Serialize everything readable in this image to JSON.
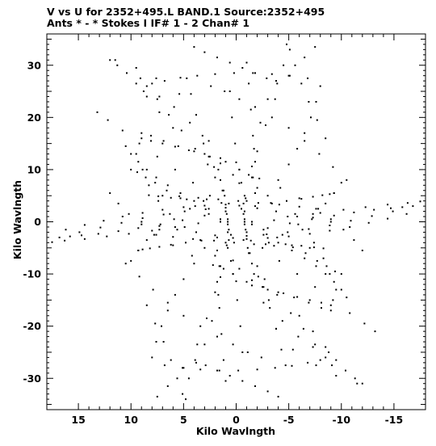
{
  "chart_data": {
    "type": "scatter",
    "title_line1": "V vs U for 2352+495.L BAND.1   Source:2352+495",
    "title_line2": "Ants * - *     Stokes I  IF# 1 - 2  Chan# 1",
    "xlabel": "Kilo Wavlngth",
    "ylabel": "Kilo Wavlngth",
    "xlim": [
      18.0,
      -18.0
    ],
    "ylim": [
      -36.0,
      36.0
    ],
    "x_ticks": [
      15,
      10,
      5,
      0,
      -5,
      -10,
      -15
    ],
    "x_tick_labels": [
      "15",
      "10",
      "5",
      "0",
      "-5",
      "-10",
      "-15"
    ],
    "y_ticks": [
      30,
      20,
      10,
      0,
      -10,
      -20,
      -30
    ],
    "y_tick_labels": [
      "30",
      "20",
      "10",
      "0",
      "-10",
      "-20",
      "-30"
    ],
    "grid": false,
    "legend": "none",
    "marker_color": "#000000",
    "uv_tracks": [
      {
        "u": [
          11.5,
          9.5,
          7.6,
          5.4,
          3.8,
          2.6,
          1.7,
          1.1,
          0.8,
          0.7
        ],
        "v": [
          31.0,
          29.5,
          27.5,
          24.5,
          20.5,
          15.5,
          10.0,
          5.0,
          0.5,
          -3.5
        ]
      },
      {
        "u": [
          -7.5,
          -6.5,
          -5.0,
          -3.7,
          -2.8,
          -2.0,
          -1.5,
          -1.0,
          -0.8,
          -0.7
        ],
        "v": [
          33.5,
          31.5,
          28.0,
          23.5,
          18.5,
          13.5,
          8.5,
          4.0,
          0.0,
          -3.5
        ]
      },
      {
        "u": [
          8.8,
          7.3,
          5.9,
          4.4,
          3.1,
          2.1,
          1.3,
          0.9,
          0.8
        ],
        "v": [
          25.0,
          24.0,
          22.0,
          19.0,
          15.0,
          10.5,
          6.0,
          1.5,
          -2.0
        ]
      },
      {
        "u": [
          -4.5,
          -3.8,
          -3.0,
          -2.3,
          -1.7,
          -1.2,
          -0.9,
          -0.8
        ],
        "v": [
          30.0,
          27.0,
          23.5,
          19.0,
          14.0,
          9.0,
          4.5,
          0.5
        ]
      },
      {
        "u": [
          9.5,
          8.9,
          8.3,
          7.4,
          6.3,
          4.9,
          3.4,
          1.8,
          0.5,
          -0.3
        ],
        "v": [
          13.0,
          10.0,
          7.0,
          4.0,
          1.5,
          -1.0,
          -3.5,
          -5.5,
          -7.5,
          -9.0
        ]
      },
      {
        "u": [
          0.7,
          1.5,
          2.6,
          3.9,
          5.3,
          6.6,
          7.7,
          8.6,
          9.4,
          10.0
        ],
        "v": [
          -1.5,
          0.0,
          1.5,
          3.0,
          4.5,
          6.0,
          7.5,
          8.5,
          9.5,
          10.0
        ]
      },
      {
        "u": [
          -0.5,
          -1.8,
          -3.3,
          -4.8,
          -6.2,
          -7.3,
          -8.2,
          -8.9,
          -9.3
        ],
        "v": [
          2.5,
          3.0,
          3.6,
          4.0,
          4.4,
          4.8,
          5.1,
          5.3,
          5.5
        ]
      },
      {
        "u": [
          16.2,
          14.4,
          12.6,
          10.8,
          8.9,
          7.0,
          5.0,
          3.0,
          1.0
        ],
        "v": [
          -1.5,
          -0.6,
          0.2,
          1.0,
          1.7,
          2.3,
          2.8,
          3.1,
          3.3
        ]
      },
      {
        "u": [
          16.8,
          14.9,
          12.9,
          10.9,
          8.9,
          6.9,
          4.9,
          2.9,
          1.0
        ],
        "v": [
          -3.0,
          -2.0,
          -1.1,
          -0.2,
          0.7,
          1.4,
          2.0,
          2.4,
          2.7
        ]
      },
      {
        "u": [
          -1.5,
          -3.6,
          -5.8,
          -8.0,
          -10.2,
          -12.3,
          -14.4,
          -16.3,
          -17.5
        ],
        "v": [
          -0.5,
          0.3,
          1.0,
          1.7,
          2.3,
          2.8,
          3.3,
          3.6,
          3.9
        ]
      },
      {
        "u": [
          -1.0,
          -3.0,
          -5.1,
          -7.2,
          -9.3,
          -11.2,
          -13.1,
          -14.7,
          -15.8
        ],
        "v": [
          -2.0,
          -1.2,
          -0.3,
          0.5,
          1.2,
          1.8,
          2.3,
          2.6,
          2.8
        ]
      },
      {
        "u": [
          9.0,
          7.3,
          5.6,
          3.8,
          2.0,
          0.3,
          -1.4,
          -3.1,
          -4.7,
          -6.2,
          -7.4,
          -8.3
        ],
        "v": [
          0.0,
          -0.8,
          -1.5,
          -2.0,
          -2.6,
          -3.1,
          -3.6,
          -4.0,
          -4.3,
          -4.6,
          -4.9,
          -5.1
        ]
      },
      {
        "u": [
          7.8,
          6.0,
          4.1,
          2.1,
          0.2,
          -1.7,
          -3.6,
          -5.4,
          -7.0
        ],
        "v": [
          -2.5,
          -2.9,
          -3.3,
          -3.6,
          -4.0,
          -4.3,
          -4.6,
          -4.9,
          -5.0
        ]
      },
      {
        "u": [
          10.5,
          9.2,
          7.9,
          6.5,
          5.0,
          3.4,
          1.8,
          0.3,
          -1.1,
          -2.4
        ],
        "v": [
          -8.0,
          -10.5,
          -13.0,
          -15.5,
          -18.0,
          -20.0,
          -22.0,
          -23.5,
          -25.0,
          -26.0
        ]
      },
      {
        "u": [
          8.5,
          7.7,
          6.9,
          6.2,
          5.6,
          5.1,
          4.8
        ],
        "v": [
          -16.0,
          -19.5,
          -23.0,
          -26.5,
          -30.0,
          -33.0,
          -34.0
        ]
      },
      {
        "u": [
          -6.0,
          -7.3,
          -8.5,
          -9.5,
          -10.4,
          -11.3,
          -12.0
        ],
        "v": [
          -18.0,
          -21.0,
          -24.0,
          -26.5,
          -28.5,
          -30.0,
          -31.0
        ]
      },
      {
        "u": [
          -2.5,
          -4.1,
          -5.8,
          -7.5,
          -9.2,
          -10.8,
          -12.2,
          -13.2
        ],
        "v": [
          -5.0,
          -7.5,
          -10.0,
          -12.5,
          -15.0,
          -17.5,
          -19.5,
          -21.0
        ]
      },
      {
        "u": [
          -1.5,
          -2.7,
          -3.9,
          -5.2,
          -6.4,
          -7.5,
          -8.5,
          -9.1
        ],
        "v": [
          -8.0,
          -11.0,
          -14.0,
          -17.5,
          -20.5,
          -23.5,
          -26.0,
          -27.5
        ]
      },
      {
        "u": [
          0.8,
          0.3,
          -0.1,
          -0.4,
          -0.6
        ],
        "v": [
          -5.0,
          -10.0,
          -15.0,
          -20.0,
          -25.0
        ]
      },
      {
        "u": [
          2.0,
          1.8,
          1.6,
          1.4,
          1.2,
          1.0
        ],
        "v": [
          -6.5,
          -11.5,
          -16.5,
          -21.5,
          -26.5,
          -30.5
        ]
      },
      {
        "u": [
          -2.0,
          -2.6,
          -3.2,
          -3.8,
          -4.3,
          -4.7
        ],
        "v": [
          -8.5,
          -12.5,
          -16.5,
          -20.5,
          -24.5,
          -27.5
        ]
      },
      {
        "u": [
          12.0,
          11.2,
          10.2,
          9.0,
          7.6,
          6.0,
          4.2,
          2.2,
          0.3,
          -1.5
        ],
        "v": [
          5.5,
          3.5,
          1.5,
          -0.5,
          -2.5,
          -4.5,
          -6.5,
          -8.3,
          -10.0,
          -11.2
        ]
      },
      {
        "u": [
          -10.0,
          -9.3,
          -8.5,
          -7.3,
          -5.9,
          -4.4,
          -2.8,
          -1.2,
          0.3,
          1.6
        ],
        "v": [
          7.5,
          5.5,
          3.5,
          1.5,
          -0.5,
          -2.5,
          -4.3,
          -6.0,
          -7.4,
          -8.5
        ]
      },
      {
        "u": [
          10.5,
          10.0,
          9.3,
          8.5,
          7.6,
          6.5,
          5.3,
          4.0,
          2.6
        ],
        "v": [
          14.5,
          13.0,
          11.5,
          10.0,
          8.5,
          7.0,
          5.5,
          4.0,
          2.5
        ]
      },
      {
        "u": [
          -8.0,
          -7.6,
          -7.1,
          -6.5,
          -5.8,
          -5.0,
          -4.0,
          -3.0
        ],
        "v": [
          26.0,
          23.0,
          20.0,
          17.0,
          14.0,
          11.0,
          8.0,
          5.0
        ]
      },
      {
        "u": [
          4.0,
          3.0,
          1.8,
          0.6,
          -0.6,
          -1.8,
          -2.9,
          -3.9
        ],
        "v": [
          33.5,
          32.5,
          31.5,
          30.5,
          29.5,
          28.5,
          27.5,
          26.5
        ]
      },
      {
        "u": [
          6.8,
          5.1,
          3.4,
          1.6,
          -0.2,
          -2.0,
          -3.7,
          -5.3,
          -6.8,
          -8.0
        ],
        "v": [
          -27.5,
          -28.0,
          -28.3,
          -28.5,
          -28.5,
          -28.3,
          -28.0,
          -27.6,
          -27.0,
          -26.5
        ]
      },
      {
        "u": [
          9.0,
          8.1,
          7.0,
          5.8,
          4.5,
          3.0,
          1.5,
          0.0,
          -1.5
        ],
        "v": [
          16.0,
          15.5,
          15.0,
          14.4,
          13.7,
          13.0,
          12.2,
          11.4,
          10.6
        ]
      },
      {
        "u": [
          -1.0,
          -2.5,
          -4.0,
          -5.5,
          -6.9,
          -8.1,
          -9.0
        ],
        "v": [
          -11.5,
          -12.5,
          -13.5,
          -14.5,
          -15.5,
          -16.5,
          -17.0
        ]
      }
    ]
  }
}
